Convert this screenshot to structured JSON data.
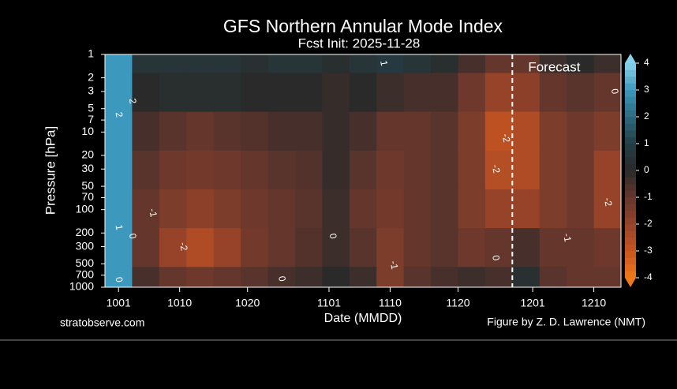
{
  "chart_data": {
    "type": "contour",
    "title": "GFS Northern Annular Mode Index",
    "subtitle": "Fcst Init: 2025-11-28",
    "x_label": "Date (MMDD)",
    "y_label": "Pressure [hPa]",
    "source": "stratobserve.com",
    "credit": "Figure by Z. D. Lawrence (NMT)",
    "forecast_label": "Forecast",
    "forecast_x": 58,
    "xlim": [
      -2,
      74
    ],
    "xticks": [
      {
        "value": 0,
        "label": "1001"
      },
      {
        "value": 9,
        "label": "1010"
      },
      {
        "value": 19,
        "label": "1020"
      },
      {
        "value": 31,
        "label": "1101"
      },
      {
        "value": 40,
        "label": "1110"
      },
      {
        "value": 50,
        "label": "1120"
      },
      {
        "value": 61,
        "label": "1201"
      },
      {
        "value": 70,
        "label": "1210"
      }
    ],
    "ylim": [
      1000,
      1
    ],
    "log_y": true,
    "yticks": [
      1,
      2,
      3,
      5,
      7,
      10,
      20,
      30,
      50,
      70,
      100,
      200,
      300,
      500,
      700,
      1000
    ],
    "x": [
      0,
      4,
      8,
      12,
      16,
      20,
      24,
      28,
      32,
      36,
      40,
      44,
      48,
      52,
      56,
      60,
      64,
      68,
      72
    ],
    "y": [
      1,
      3,
      10,
      30,
      100,
      300,
      1000
    ],
    "z": [
      [
        3,
        3,
        3,
        3,
        3,
        3,
        3
      ],
      [
        0.5,
        0,
        -0.5,
        -0.8,
        -1,
        -1,
        -0.5
      ],
      [
        0.5,
        0.2,
        -0.8,
        -1.2,
        -1.5,
        -2,
        -1
      ],
      [
        0.5,
        0.2,
        -1,
        -1.3,
        -1.8,
        -2.5,
        -1.2
      ],
      [
        0.5,
        0.2,
        -0.8,
        -1.2,
        -1.5,
        -2,
        -1
      ],
      [
        0.3,
        0,
        -0.7,
        -1,
        -1.2,
        -1.3,
        -0.8
      ],
      [
        0.5,
        0,
        -0.5,
        -0.8,
        -1,
        -1,
        -0.5
      ],
      [
        0.5,
        0,
        -0.5,
        -0.7,
        -0.8,
        -0.7,
        -0.3
      ],
      [
        0.2,
        -0.2,
        -0.2,
        -0.2,
        -0.3,
        -0.3,
        0
      ],
      [
        0.5,
        0,
        -0.5,
        -0.8,
        -1,
        -0.8,
        -0.3
      ],
      [
        0.8,
        -0.3,
        -1,
        -1.2,
        -1.3,
        -1.5,
        -1.5
      ],
      [
        0.5,
        -0.5,
        -1,
        -1,
        -1,
        -1,
        -0.8
      ],
      [
        0.2,
        -0.5,
        -0.8,
        -0.8,
        -0.8,
        -0.8,
        -0.5
      ],
      [
        -0.5,
        -1.2,
        -1.5,
        -1.5,
        -1.5,
        -1.2,
        -0.3
      ],
      [
        -1,
        -2,
        -2.8,
        -2.6,
        -2,
        -1,
        -0.5
      ],
      [
        -1,
        -1.8,
        -2.5,
        -2.5,
        -2,
        -0.5,
        0.3
      ],
      [
        -0.3,
        -1,
        -1.5,
        -1.5,
        -1.5,
        -1,
        -0.8
      ],
      [
        0,
        -0.8,
        -1.2,
        -1.2,
        -1.2,
        -1,
        -1
      ],
      [
        -0.3,
        -1,
        -1.5,
        -2,
        -2,
        -1.2,
        -1
      ]
    ],
    "contour_labels": [
      {
        "x": 39,
        "y": 1.3,
        "value": 1
      },
      {
        "x": 2,
        "y": 4,
        "value": 2
      },
      {
        "x": 0,
        "y": 6,
        "value": 2
      },
      {
        "x": 57,
        "y": 12,
        "value": -2
      },
      {
        "x": 55.5,
        "y": 30,
        "value": -2
      },
      {
        "x": 72,
        "y": 80,
        "value": -2
      },
      {
        "x": 9.5,
        "y": 300,
        "value": -2
      },
      {
        "x": 5,
        "y": 110,
        "value": -1
      },
      {
        "x": 0,
        "y": 170,
        "value": 1
      },
      {
        "x": 2,
        "y": 220,
        "value": 0
      },
      {
        "x": 31.5,
        "y": 220,
        "value": 0
      },
      {
        "x": 55.5,
        "y": 420,
        "value": 0
      },
      {
        "x": 66,
        "y": 230,
        "value": -1
      },
      {
        "x": 40.5,
        "y": 520,
        "value": -1
      },
      {
        "x": 0,
        "y": 800,
        "value": 0
      },
      {
        "x": 24,
        "y": 780,
        "value": 0
      },
      {
        "x": 73,
        "y": 3,
        "value": 0
      }
    ],
    "colorbar": {
      "lim": [
        -4,
        4
      ],
      "ticks": [
        4,
        3,
        2,
        1,
        0,
        -1,
        -2,
        -3,
        -4
      ],
      "colors": [
        "#f07818",
        "#c85520",
        "#96432a",
        "#64362c",
        "#2a2a2a",
        "#233d45",
        "#2c6a80",
        "#3c98bc",
        "#8ad2ec"
      ]
    }
  }
}
